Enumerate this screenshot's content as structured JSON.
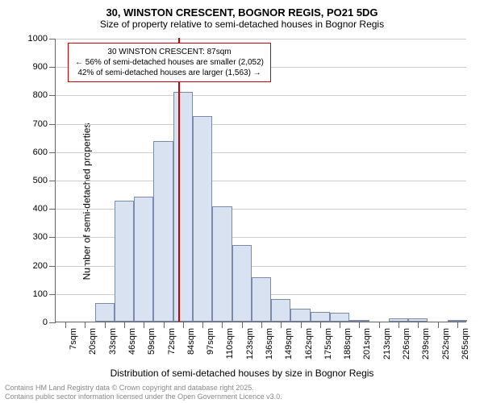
{
  "title": "30, WINSTON CRESCENT, BOGNOR REGIS, PO21 5DG",
  "subtitle": "Size of property relative to semi-detached houses in Bognor Regis",
  "chart": {
    "type": "histogram",
    "ylabel": "Number of semi-detached properties",
    "xlabel": "Distribution of semi-detached houses by size in Bognor Regis",
    "ylim": [
      0,
      1000
    ],
    "ytick_step": 100,
    "background_color": "#ffffff",
    "grid_color": "#cccccc",
    "axis_color": "#666666",
    "label_fontsize": 12,
    "tick_fontsize": 11,
    "x_categories": [
      "7sqm",
      "20sqm",
      "33sqm",
      "46sqm",
      "59sqm",
      "72sqm",
      "84sqm",
      "97sqm",
      "110sqm",
      "123sqm",
      "136sqm",
      "149sqm",
      "162sqm",
      "175sqm",
      "188sqm",
      "201sqm",
      "213sqm",
      "226sqm",
      "239sqm",
      "252sqm",
      "265sqm"
    ],
    "values": [
      0,
      0,
      65,
      425,
      440,
      635,
      810,
      725,
      405,
      270,
      155,
      80,
      45,
      35,
      30,
      5,
      0,
      10,
      10,
      0,
      5
    ],
    "bar_fill": "#d8e2f0",
    "bar_stroke": "#7a8aa8",
    "bar_width_ratio": 1.0,
    "marker": {
      "position_index": 6.25,
      "color": "#cc0000",
      "width": 2
    },
    "annotation": {
      "line1": "30 WINSTON CRESCENT: 87sqm",
      "line2": "← 56% of semi-detached houses are smaller (2,052)",
      "line3": "42% of semi-detached houses are larger (1,563) →",
      "border_color": "#cc0000",
      "bg_color": "#ffffff",
      "fontsize": 10
    }
  },
  "footer": {
    "line1": "Contains HM Land Registry data © Crown copyright and database right 2025.",
    "line2": "Contains public sector information licensed under the Open Government Licence v3.0.",
    "color": "#888888",
    "fontsize": 9
  }
}
